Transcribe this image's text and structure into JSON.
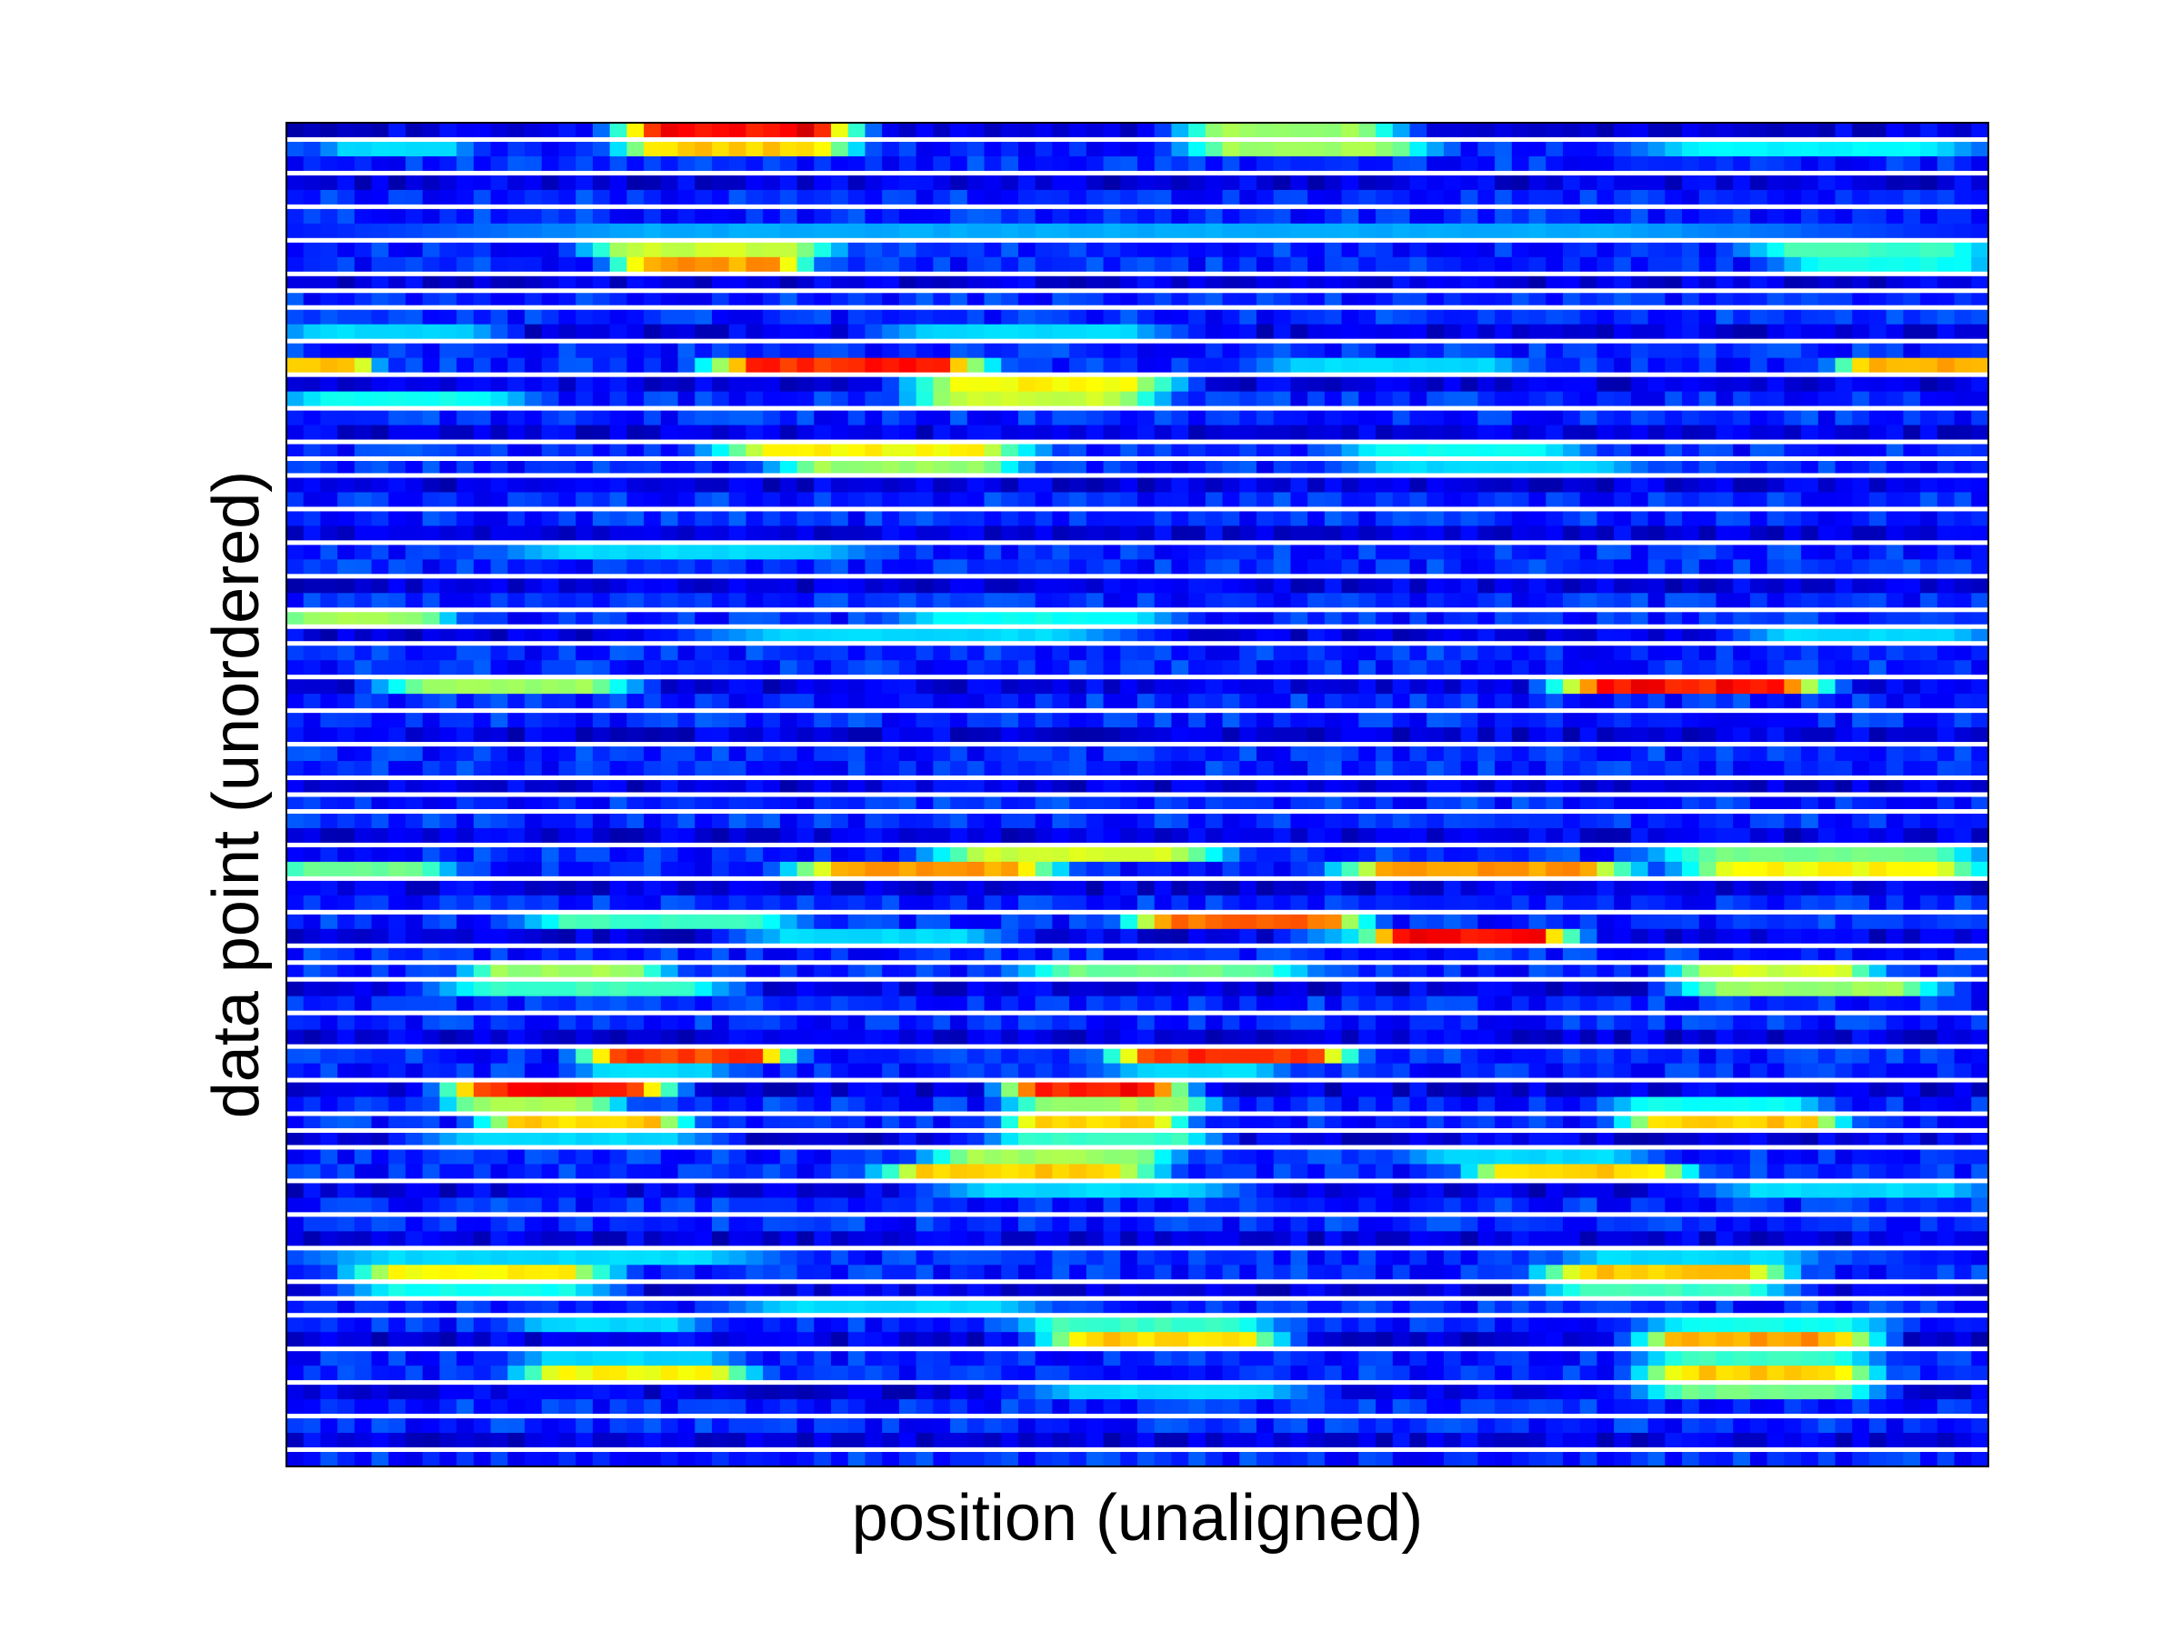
{
  "chart_data": {
    "type": "heatmap",
    "title": "",
    "xlabel": "position (unaligned)",
    "ylabel": "data point (unordered)",
    "colormap": "jet",
    "colormap_stops": [
      "#00008f",
      "#0000ff",
      "#00ffff",
      "#ffff00",
      "#ff0000",
      "#800000"
    ],
    "value_range": [
      0,
      1
    ],
    "n_columns": 100,
    "n_rows": 80,
    "separator_color": "#ffffff",
    "ticks": "none",
    "background_level": 0.13,
    "row_profiles": [
      {
        "row": 0,
        "segments": [
          [
            20,
            33,
            0.92
          ],
          [
            53,
            65,
            0.55
          ]
        ]
      },
      {
        "row": 1,
        "segments": [
          [
            3,
            10,
            0.35
          ],
          [
            20,
            33,
            0.7
          ],
          [
            53,
            67,
            0.55
          ],
          [
            79,
            100,
            0.38
          ]
        ]
      },
      {
        "row": 6,
        "segments": [
          [
            0,
            100,
            0.3
          ]
        ]
      },
      {
        "row": 7,
        "segments": [
          [
            18,
            32,
            0.6
          ],
          [
            86,
            100,
            0.45
          ]
        ]
      },
      {
        "row": 8,
        "segments": [
          [
            20,
            30,
            0.75
          ],
          [
            88,
            100,
            0.4
          ]
        ]
      },
      {
        "row": 12,
        "segments": [
          [
            0,
            12,
            0.35
          ],
          [
            35,
            52,
            0.35
          ]
        ]
      },
      {
        "row": 14,
        "segments": [
          [
            0,
            4,
            0.7
          ],
          [
            25,
            41,
            0.88
          ],
          [
            57,
            73,
            0.35
          ],
          [
            92,
            100,
            0.75
          ]
        ]
      },
      {
        "row": 15,
        "segments": [
          [
            37,
            52,
            0.65
          ]
        ]
      },
      {
        "row": 16,
        "segments": [
          [
            0,
            14,
            0.4
          ],
          [
            37,
            51,
            0.6
          ]
        ]
      },
      {
        "row": 19,
        "segments": [
          [
            25,
            44,
            0.65
          ],
          [
            62,
            76,
            0.4
          ]
        ]
      },
      {
        "row": 20,
        "segments": [
          [
            29,
            43,
            0.55
          ],
          [
            62,
            80,
            0.35
          ]
        ]
      },
      {
        "row": 25,
        "segments": [
          [
            12,
            35,
            0.35
          ]
        ]
      },
      {
        "row": 29,
        "segments": [
          [
            0,
            9,
            0.55
          ],
          [
            36,
            52,
            0.4
          ]
        ]
      },
      {
        "row": 30,
        "segments": [
          [
            24,
            50,
            0.35
          ],
          [
            86,
            100,
            0.35
          ]
        ]
      },
      {
        "row": 33,
        "segments": [
          [
            6,
            20,
            0.55
          ],
          [
            75,
            90,
            0.9
          ]
        ]
      },
      {
        "row": 43,
        "segments": [
          [
            38,
            55,
            0.6
          ],
          [
            80,
            100,
            0.5
          ]
        ]
      },
      {
        "row": 44,
        "segments": [
          [
            0,
            9,
            0.5
          ],
          [
            30,
            45,
            0.75
          ],
          [
            62,
            79,
            0.75
          ],
          [
            82,
            100,
            0.65
          ]
        ]
      },
      {
        "row": 47,
        "segments": [
          [
            14,
            30,
            0.45
          ],
          [
            50,
            63,
            0.8
          ]
        ]
      },
      {
        "row": 48,
        "segments": [
          [
            27,
            42,
            0.35
          ],
          [
            60,
            75,
            0.35
          ],
          [
            64,
            75,
            0.9
          ]
        ]
      },
      {
        "row": 50,
        "segments": [
          [
            11,
            22,
            0.55
          ],
          [
            43,
            60,
            0.5
          ],
          [
            82,
            93,
            0.6
          ]
        ]
      },
      {
        "row": 51,
        "segments": [
          [
            9,
            26,
            0.45
          ],
          [
            82,
            97,
            0.55
          ]
        ]
      },
      {
        "row": 55,
        "segments": [
          [
            18,
            29,
            0.85
          ],
          [
            49,
            62,
            0.88
          ]
        ]
      },
      {
        "row": 56,
        "segments": [
          [
            18,
            25,
            0.35
          ],
          [
            49,
            58,
            0.35
          ]
        ]
      },
      {
        "row": 57,
        "segments": [
          [
            10,
            22,
            0.9
          ],
          [
            43,
            52,
            0.9
          ]
        ]
      },
      {
        "row": 58,
        "segments": [
          [
            10,
            19,
            0.55
          ],
          [
            43,
            54,
            0.55
          ],
          [
            78,
            90,
            0.4
          ]
        ]
      },
      {
        "row": 59,
        "segments": [
          [
            12,
            23,
            0.7
          ],
          [
            43,
            52,
            0.7
          ],
          [
            79,
            91,
            0.7
          ]
        ]
      },
      {
        "row": 60,
        "segments": [
          [
            8,
            25,
            0.35
          ],
          [
            42,
            54,
            0.45
          ]
        ]
      },
      {
        "row": 61,
        "segments": [
          [
            38,
            52,
            0.55
          ],
          [
            66,
            80,
            0.35
          ]
        ]
      },
      {
        "row": 62,
        "segments": [
          [
            35,
            51,
            0.7
          ],
          [
            70,
            82,
            0.7
          ]
        ]
      },
      {
        "row": 63,
        "segments": [
          [
            38,
            56,
            0.35
          ],
          [
            84,
            100,
            0.35
          ]
        ]
      },
      {
        "row": 67,
        "segments": [
          [
            0,
            30,
            0.35
          ],
          [
            75,
            90,
            0.35
          ]
        ]
      },
      {
        "row": 68,
        "segments": [
          [
            4,
            19,
            0.65
          ],
          [
            74,
            88,
            0.7
          ]
        ]
      },
      {
        "row": 69,
        "segments": [
          [
            4,
            19,
            0.4
          ],
          [
            74,
            88,
            0.45
          ]
        ]
      },
      {
        "row": 70,
        "segments": [
          [
            26,
            45,
            0.35
          ]
        ]
      },
      {
        "row": 71,
        "segments": [
          [
            14,
            24,
            0.35
          ],
          [
            43,
            58,
            0.45
          ],
          [
            80,
            94,
            0.4
          ]
        ]
      },
      {
        "row": 72,
        "segments": [
          [
            45,
            58,
            0.7
          ],
          [
            80,
            93,
            0.75
          ]
        ]
      },
      {
        "row": 73,
        "segments": [
          [
            14,
            26,
            0.35
          ],
          [
            80,
            93,
            0.45
          ]
        ]
      },
      {
        "row": 74,
        "segments": [
          [
            14,
            27,
            0.65
          ],
          [
            80,
            93,
            0.7
          ]
        ]
      },
      {
        "row": 75,
        "segments": [
          [
            44,
            60,
            0.35
          ],
          [
            80,
            93,
            0.5
          ]
        ]
      }
    ]
  }
}
